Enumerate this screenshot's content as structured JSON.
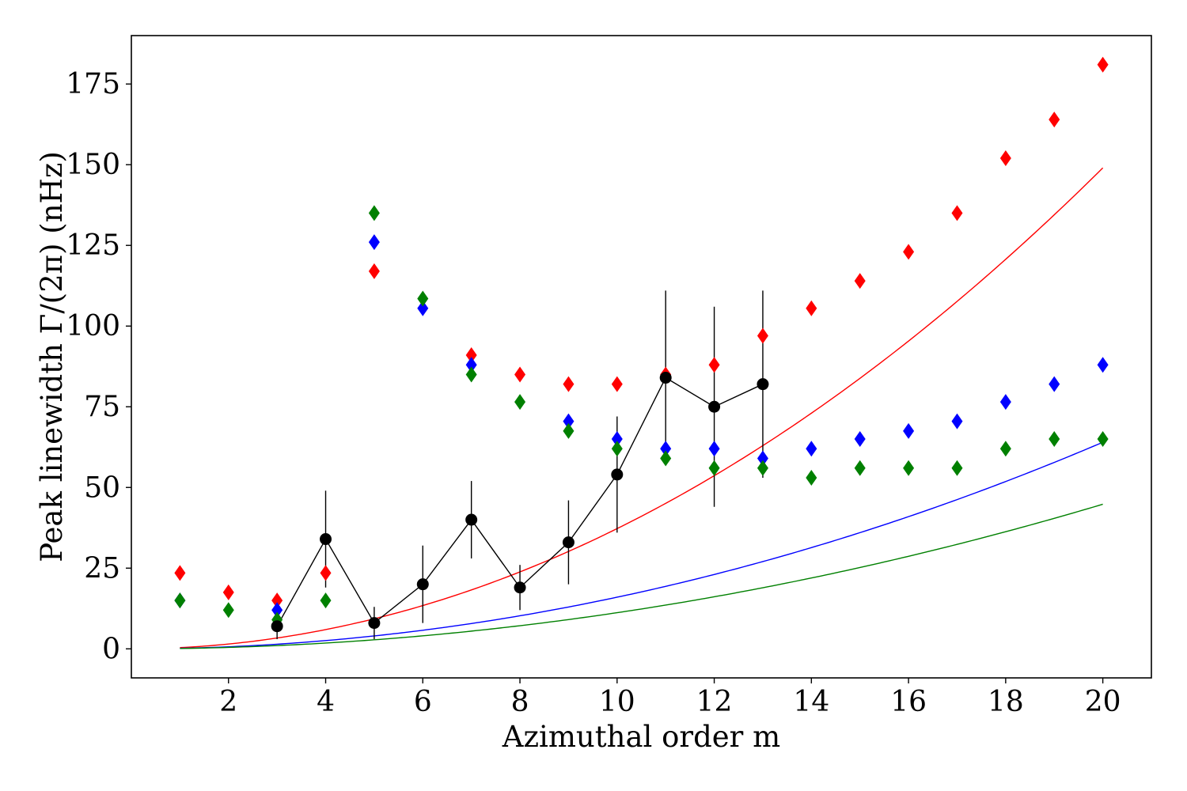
{
  "chart_data": {
    "type": "scatter",
    "title": "",
    "xlabel": "Azimuthal order m",
    "ylabel": "Peak linewidth Γ/(2π) (nHz)",
    "xlim": [
      0,
      21
    ],
    "ylim": [
      -9,
      190
    ],
    "xticks": [
      2,
      4,
      6,
      8,
      10,
      12,
      14,
      16,
      18,
      20
    ],
    "yticks": [
      0,
      25,
      50,
      75,
      100,
      125,
      150,
      175
    ],
    "grid": false,
    "legend": "none",
    "series": [
      {
        "name": "red diamonds",
        "kind": "marker",
        "marker": "diamond",
        "color": "#ff0000",
        "x": [
          1,
          2,
          3,
          4,
          5,
          7,
          8,
          9,
          10,
          11,
          12,
          13,
          14,
          15,
          16,
          17,
          18,
          19,
          20
        ],
        "y": [
          23.5,
          17.5,
          15,
          23.5,
          117,
          91,
          85,
          82,
          82,
          85,
          88,
          97,
          105.5,
          114,
          123,
          135,
          152,
          164,
          181
        ]
      },
      {
        "name": "blue diamonds",
        "kind": "marker",
        "marker": "diamond",
        "color": "#0000ff",
        "x": [
          1,
          3,
          5,
          6,
          7,
          9,
          10,
          11,
          12,
          13,
          14,
          15,
          16,
          17,
          18,
          19,
          20
        ],
        "y": [
          15,
          12,
          126,
          105.5,
          88,
          70.5,
          65,
          62,
          62,
          59,
          62,
          65,
          67.5,
          70.5,
          76.5,
          82,
          88
        ]
      },
      {
        "name": "green diamonds",
        "kind": "marker",
        "marker": "diamond",
        "color": "#008000",
        "x": [
          1,
          2,
          3,
          4,
          5,
          6,
          7,
          8,
          9,
          10,
          11,
          12,
          13,
          14,
          15,
          16,
          17,
          18,
          19,
          20
        ],
        "y": [
          15,
          12,
          9,
          15,
          135,
          108.5,
          85,
          76.5,
          67.5,
          62,
          59,
          56,
          56,
          53,
          56,
          56,
          56,
          62,
          65,
          65
        ]
      },
      {
        "name": "observed",
        "kind": "errorbar",
        "marker": "circle",
        "color": "#000000",
        "x": [
          3,
          4,
          5,
          6,
          7,
          8,
          9,
          10,
          11,
          12,
          13
        ],
        "y": [
          7,
          34,
          8,
          20,
          40,
          19,
          33,
          54,
          84,
          75,
          82
        ],
        "yerr": [
          4,
          15,
          5,
          12,
          12,
          7,
          13,
          18,
          27,
          31,
          29
        ]
      },
      {
        "name": "red curve",
        "kind": "line",
        "color": "#ff0000",
        "coef": 0.3725,
        "exponent": 2
      },
      {
        "name": "blue curve",
        "kind": "line",
        "color": "#0000ff",
        "coef": 0.16,
        "exponent": 2
      },
      {
        "name": "green curve",
        "kind": "line",
        "color": "#008000",
        "coef": 0.112,
        "exponent": 2
      }
    ]
  }
}
